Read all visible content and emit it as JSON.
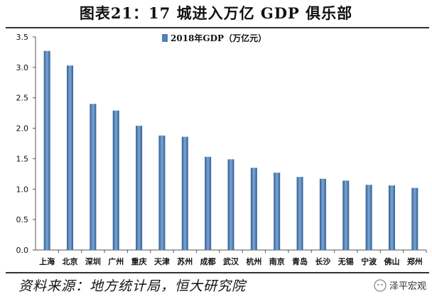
{
  "figure": {
    "title": "图表21：17 城进入万亿 GDP 俱乐部",
    "source": "资料来源：地方统计局，恒大研究院",
    "brand": "泽平宏观"
  },
  "colors": {
    "bar": "#4f81bd",
    "bar_dark": "#2f5f94",
    "bar_light": "#7ea6d6"
  },
  "chart_data": {
    "type": "bar",
    "categories": [
      "上海",
      "北京",
      "深圳",
      "广州",
      "重庆",
      "天津",
      "苏州",
      "成都",
      "武汉",
      "杭州",
      "南京",
      "青岛",
      "长沙",
      "无锡",
      "宁波",
      "佛山",
      "郑州"
    ],
    "series": [
      {
        "name": "2018年GDP（万亿元）",
        "values": [
          3.27,
          3.03,
          2.4,
          2.29,
          2.04,
          1.88,
          1.86,
          1.53,
          1.49,
          1.35,
          1.27,
          1.2,
          1.17,
          1.14,
          1.07,
          1.06,
          1.02
        ]
      }
    ],
    "yticks": [
      "0.0",
      "0.5",
      "1.0",
      "1.5",
      "2.0",
      "2.5",
      "3.0",
      "3.5"
    ],
    "ylim": [
      0,
      3.5
    ],
    "grid": false,
    "legend": "top-center"
  }
}
